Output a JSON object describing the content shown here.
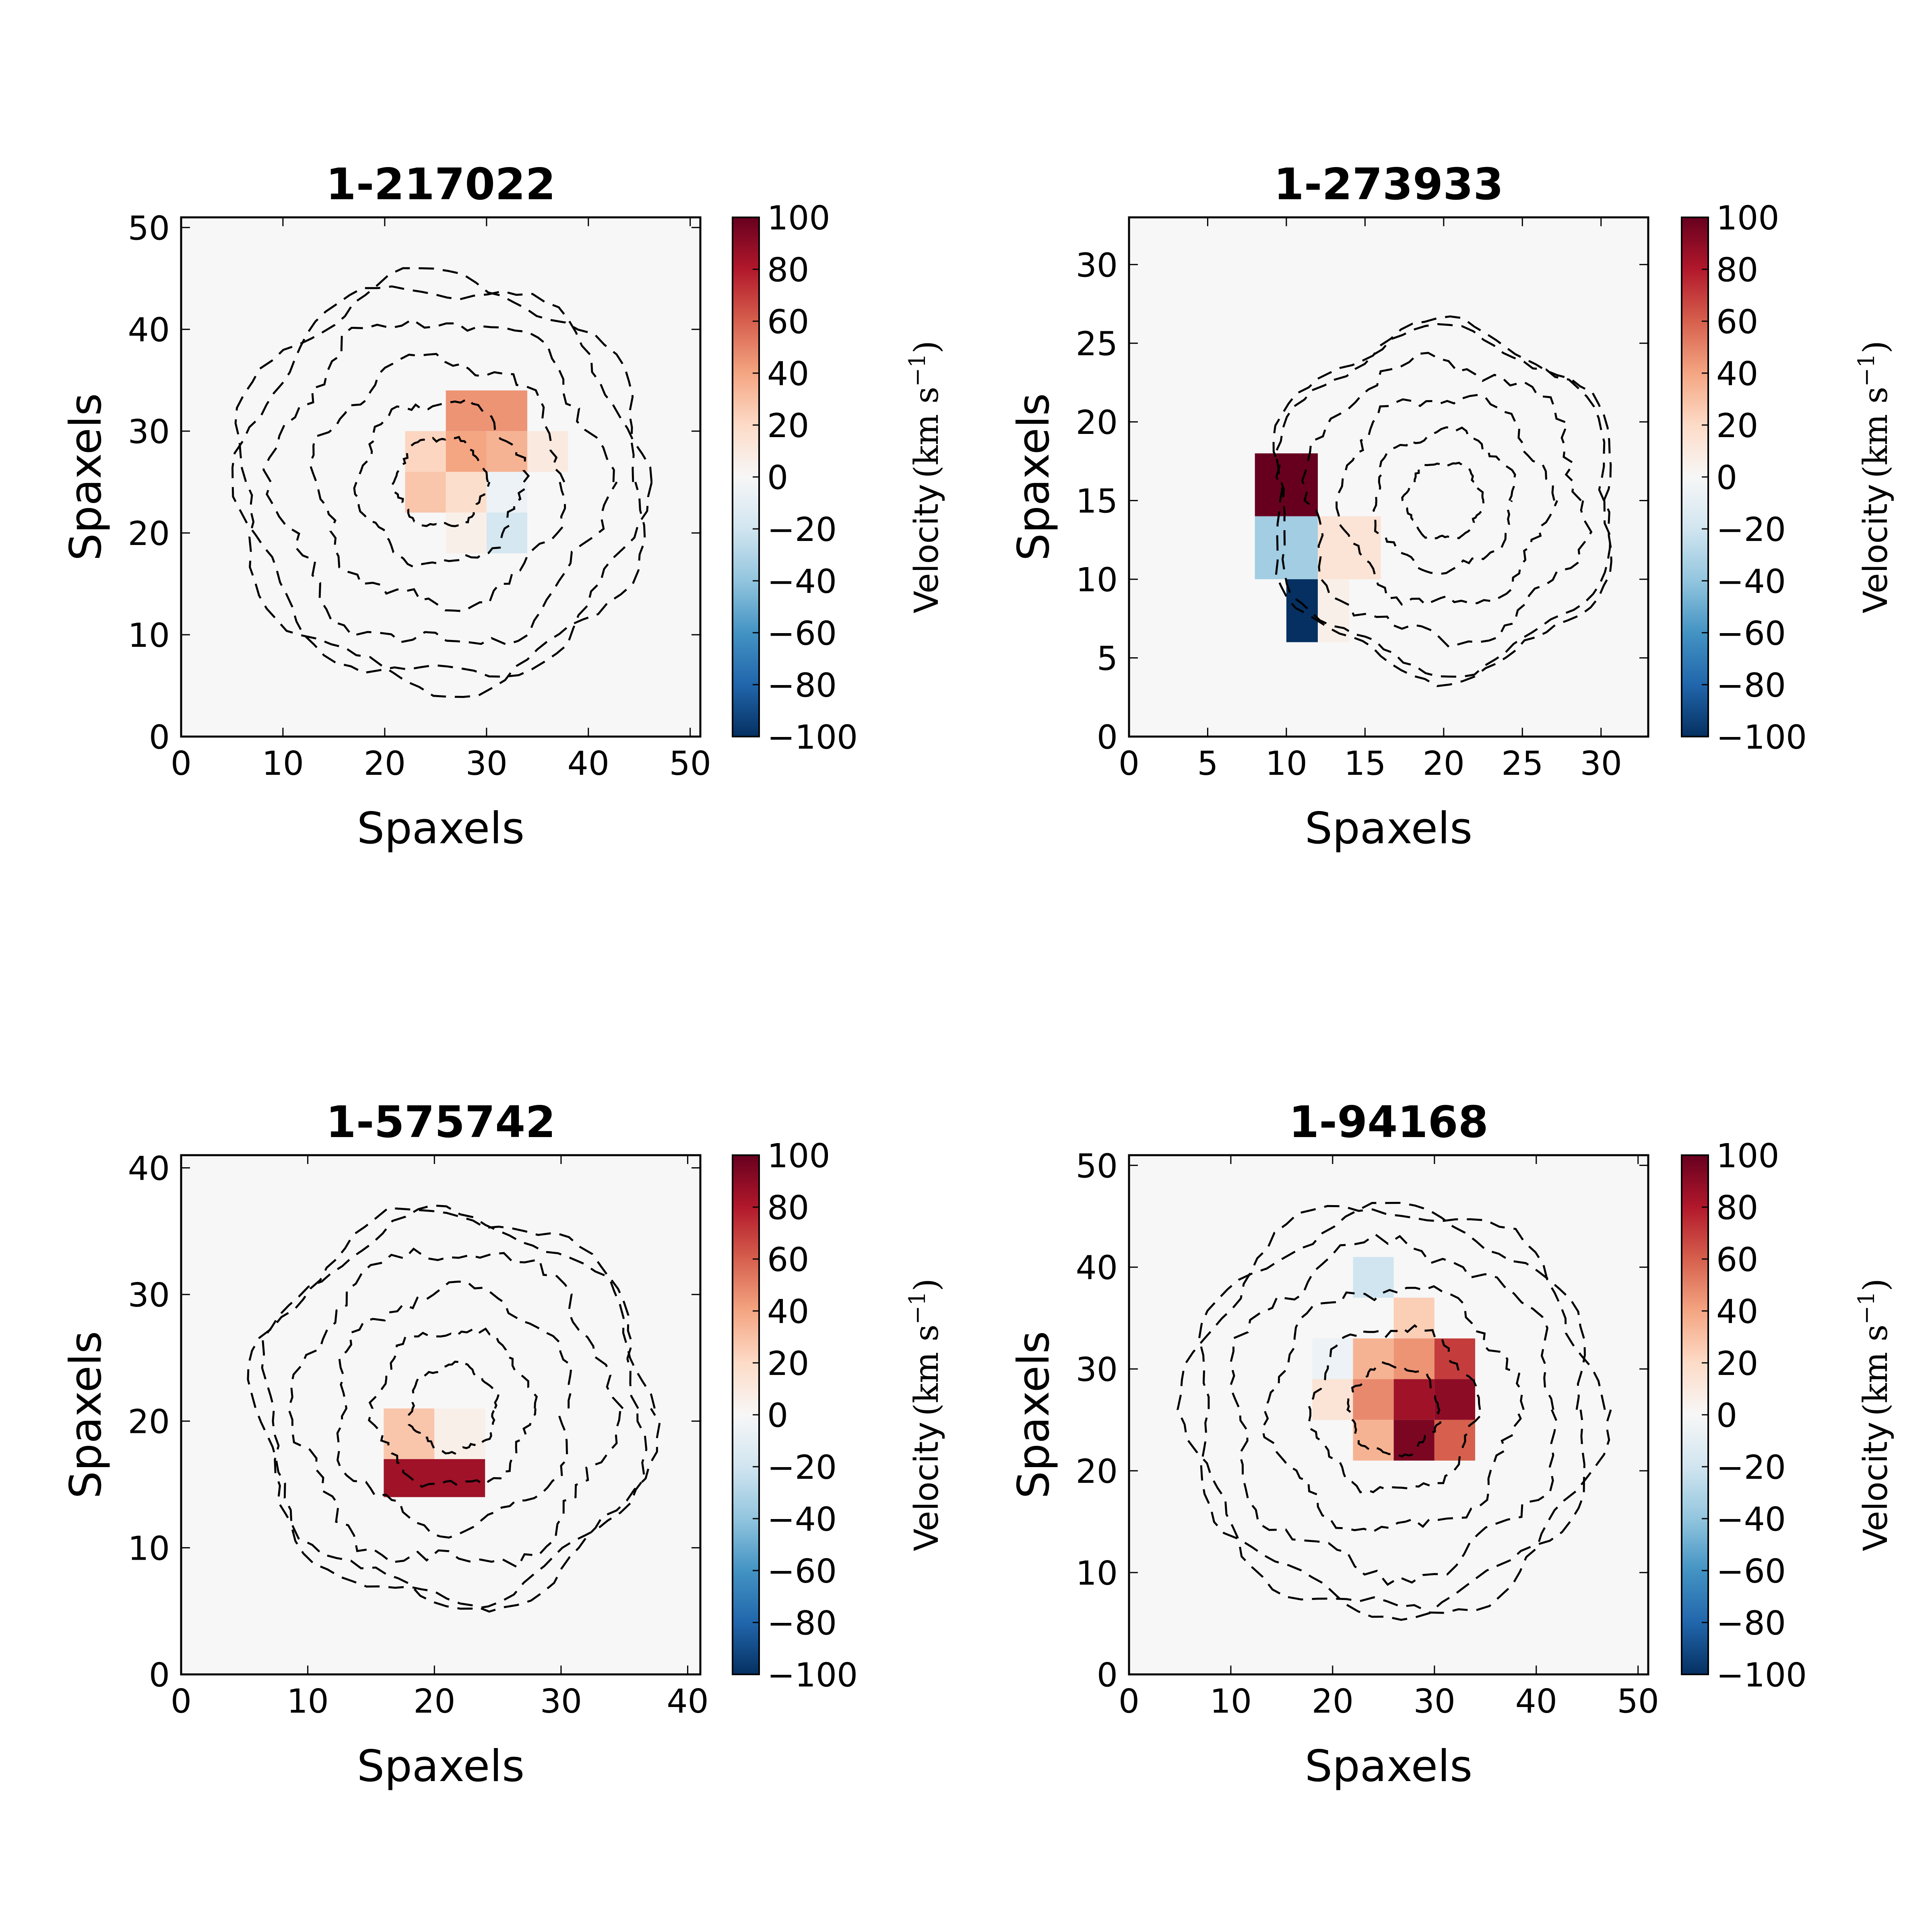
{
  "colorbar": {
    "ticks": [
      100,
      80,
      60,
      40,
      20,
      0,
      -20,
      -40,
      -60,
      -80,
      -100
    ],
    "tick_labels": [
      "100",
      "80",
      "60",
      "40",
      "20",
      "0",
      "−20",
      "−40",
      "−60",
      "−80",
      "−100"
    ],
    "label_text": "Velocity",
    "label_unit": "km s",
    "label_exp": "−1",
    "range": [
      -100,
      100
    ],
    "colors": [
      "#053061",
      "#2166ac",
      "#4393c3",
      "#92c5de",
      "#d1e5f0",
      "#f7f7f7",
      "#fddbc7",
      "#f4a582",
      "#d6604d",
      "#b2182b",
      "#67001f"
    ]
  },
  "chart_data": [
    {
      "type": "heatmap",
      "title": "1-217022",
      "xlabel": "Spaxels",
      "ylabel": "Spaxels",
      "xlim": [
        0,
        51
      ],
      "ylim": [
        0,
        51
      ],
      "xticks": [
        0,
        10,
        20,
        30,
        40,
        50
      ],
      "yticks": [
        0,
        10,
        20,
        30,
        40,
        50
      ],
      "contour_center": [
        25.5,
        25
      ],
      "contour_radius": 20,
      "cells": [
        {
          "x": 26,
          "y": 30,
          "w": 8,
          "h": 4,
          "v": 45
        },
        {
          "x": 22,
          "y": 26,
          "w": 4,
          "h": 4,
          "v": 22
        },
        {
          "x": 26,
          "y": 26,
          "w": 4,
          "h": 4,
          "v": 40
        },
        {
          "x": 30,
          "y": 26,
          "w": 4,
          "h": 4,
          "v": 35
        },
        {
          "x": 34,
          "y": 26,
          "w": 4,
          "h": 4,
          "v": 10
        },
        {
          "x": 22,
          "y": 22,
          "w": 4,
          "h": 4,
          "v": 28
        },
        {
          "x": 26,
          "y": 22,
          "w": 4,
          "h": 4,
          "v": 18
        },
        {
          "x": 30,
          "y": 22,
          "w": 4,
          "h": 4,
          "v": -6
        },
        {
          "x": 30,
          "y": 18,
          "w": 4,
          "h": 4,
          "v": -18
        },
        {
          "x": 26,
          "y": 18,
          "w": 4,
          "h": 4,
          "v": 6
        }
      ]
    },
    {
      "type": "heatmap",
      "title": "1-273933",
      "xlabel": "Spaxels",
      "ylabel": "Spaxels",
      "xlim": [
        0,
        33
      ],
      "ylim": [
        0,
        33
      ],
      "xticks": [
        0,
        5,
        10,
        15,
        20,
        25,
        30
      ],
      "yticks": [
        0,
        5,
        10,
        15,
        20,
        25,
        30
      ],
      "contour_center": [
        20,
        15
      ],
      "contour_radius": 11,
      "cells": [
        {
          "x": 8,
          "y": 14,
          "w": 4,
          "h": 4,
          "v": 100
        },
        {
          "x": 8,
          "y": 10,
          "w": 4,
          "h": 4,
          "v": -35
        },
        {
          "x": 12,
          "y": 10,
          "w": 4,
          "h": 4,
          "v": 14
        },
        {
          "x": 10,
          "y": 6,
          "w": 2,
          "h": 4,
          "v": -100
        },
        {
          "x": 12,
          "y": 6,
          "w": 2,
          "h": 4,
          "v": 6
        }
      ]
    },
    {
      "type": "heatmap",
      "title": "1-575742",
      "xlabel": "Spaxels",
      "ylabel": "Spaxels",
      "xlim": [
        0,
        41
      ],
      "ylim": [
        0,
        41
      ],
      "xticks": [
        0,
        10,
        20,
        30,
        40
      ],
      "yticks": [
        0,
        10,
        20,
        30,
        40
      ],
      "contour_center": [
        21.5,
        21
      ],
      "contour_radius": 15.5,
      "cells": [
        {
          "x": 16,
          "y": 17,
          "w": 4,
          "h": 4,
          "v": 28
        },
        {
          "x": 20,
          "y": 17,
          "w": 4,
          "h": 4,
          "v": 6
        },
        {
          "x": 16,
          "y": 14,
          "w": 8,
          "h": 3,
          "v": 85
        }
      ]
    },
    {
      "type": "heatmap",
      "title": "1-94168",
      "xlabel": "Spaxels",
      "ylabel": "Spaxels",
      "xlim": [
        0,
        51
      ],
      "ylim": [
        0,
        51
      ],
      "xticks": [
        0,
        10,
        20,
        30,
        40,
        50
      ],
      "yticks": [
        0,
        10,
        20,
        30,
        40,
        50
      ],
      "contour_center": [
        26,
        26
      ],
      "contour_radius": 20,
      "cells": [
        {
          "x": 22,
          "y": 37,
          "w": 4,
          "h": 4,
          "v": -20
        },
        {
          "x": 26,
          "y": 33,
          "w": 4,
          "h": 4,
          "v": 25
        },
        {
          "x": 18,
          "y": 29,
          "w": 4,
          "h": 4,
          "v": -6
        },
        {
          "x": 22,
          "y": 29,
          "w": 4,
          "h": 4,
          "v": 35
        },
        {
          "x": 26,
          "y": 29,
          "w": 4,
          "h": 4,
          "v": 45
        },
        {
          "x": 30,
          "y": 29,
          "w": 4,
          "h": 4,
          "v": 70
        },
        {
          "x": 18,
          "y": 25,
          "w": 4,
          "h": 4,
          "v": 14
        },
        {
          "x": 22,
          "y": 25,
          "w": 4,
          "h": 4,
          "v": 48
        },
        {
          "x": 26,
          "y": 25,
          "w": 4,
          "h": 4,
          "v": 85
        },
        {
          "x": 30,
          "y": 25,
          "w": 4,
          "h": 4,
          "v": 90
        },
        {
          "x": 22,
          "y": 21,
          "w": 4,
          "h": 4,
          "v": 35
        },
        {
          "x": 26,
          "y": 21,
          "w": 4,
          "h": 4,
          "v": 95
        },
        {
          "x": 30,
          "y": 21,
          "w": 4,
          "h": 4,
          "v": 60
        }
      ]
    }
  ]
}
